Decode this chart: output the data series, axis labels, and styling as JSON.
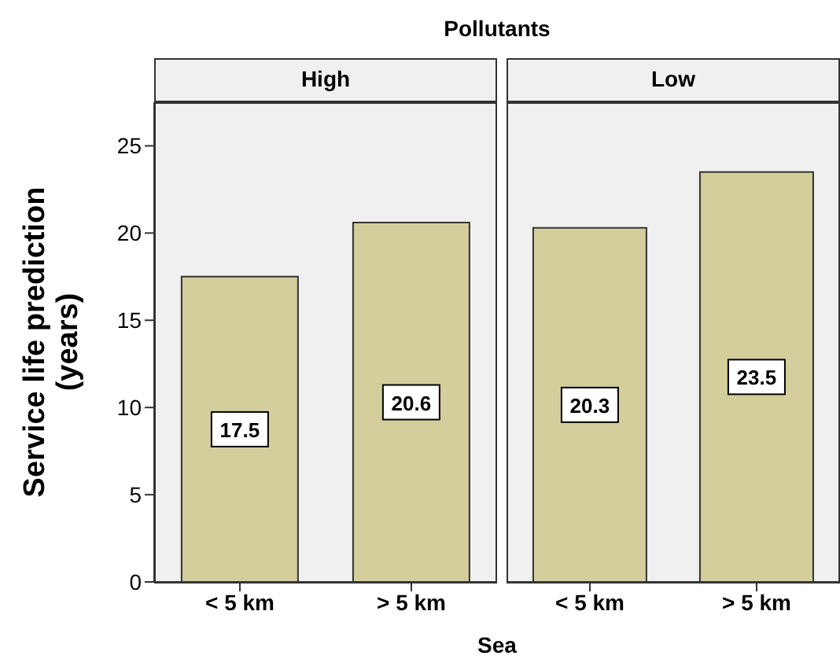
{
  "chart_data": [
    {
      "type": "bar",
      "title": "High",
      "annotations": [
        "Pollutants"
      ],
      "xlabel": "Sea",
      "ylabel": "Service life prediction (years)",
      "categories": [
        "< 5 km",
        "> 5 km"
      ],
      "values": [
        17.5,
        20.6
      ],
      "color": "#d3ce9b",
      "ylim": [
        0,
        27.5
      ],
      "yticks": [
        0,
        5,
        10,
        15,
        20,
        25
      ],
      "data_labels": true
    },
    {
      "type": "bar",
      "title": "Low",
      "categories": [
        "< 5 km",
        "> 5 km"
      ],
      "values": [
        20.3,
        23.5
      ],
      "color": "#d3ce9b",
      "ylim": [
        0,
        27.5
      ],
      "yticks": [
        0,
        5,
        10,
        15,
        20,
        25
      ],
      "data_labels": true,
      "tick_labels": "x"
    }
  ]
}
